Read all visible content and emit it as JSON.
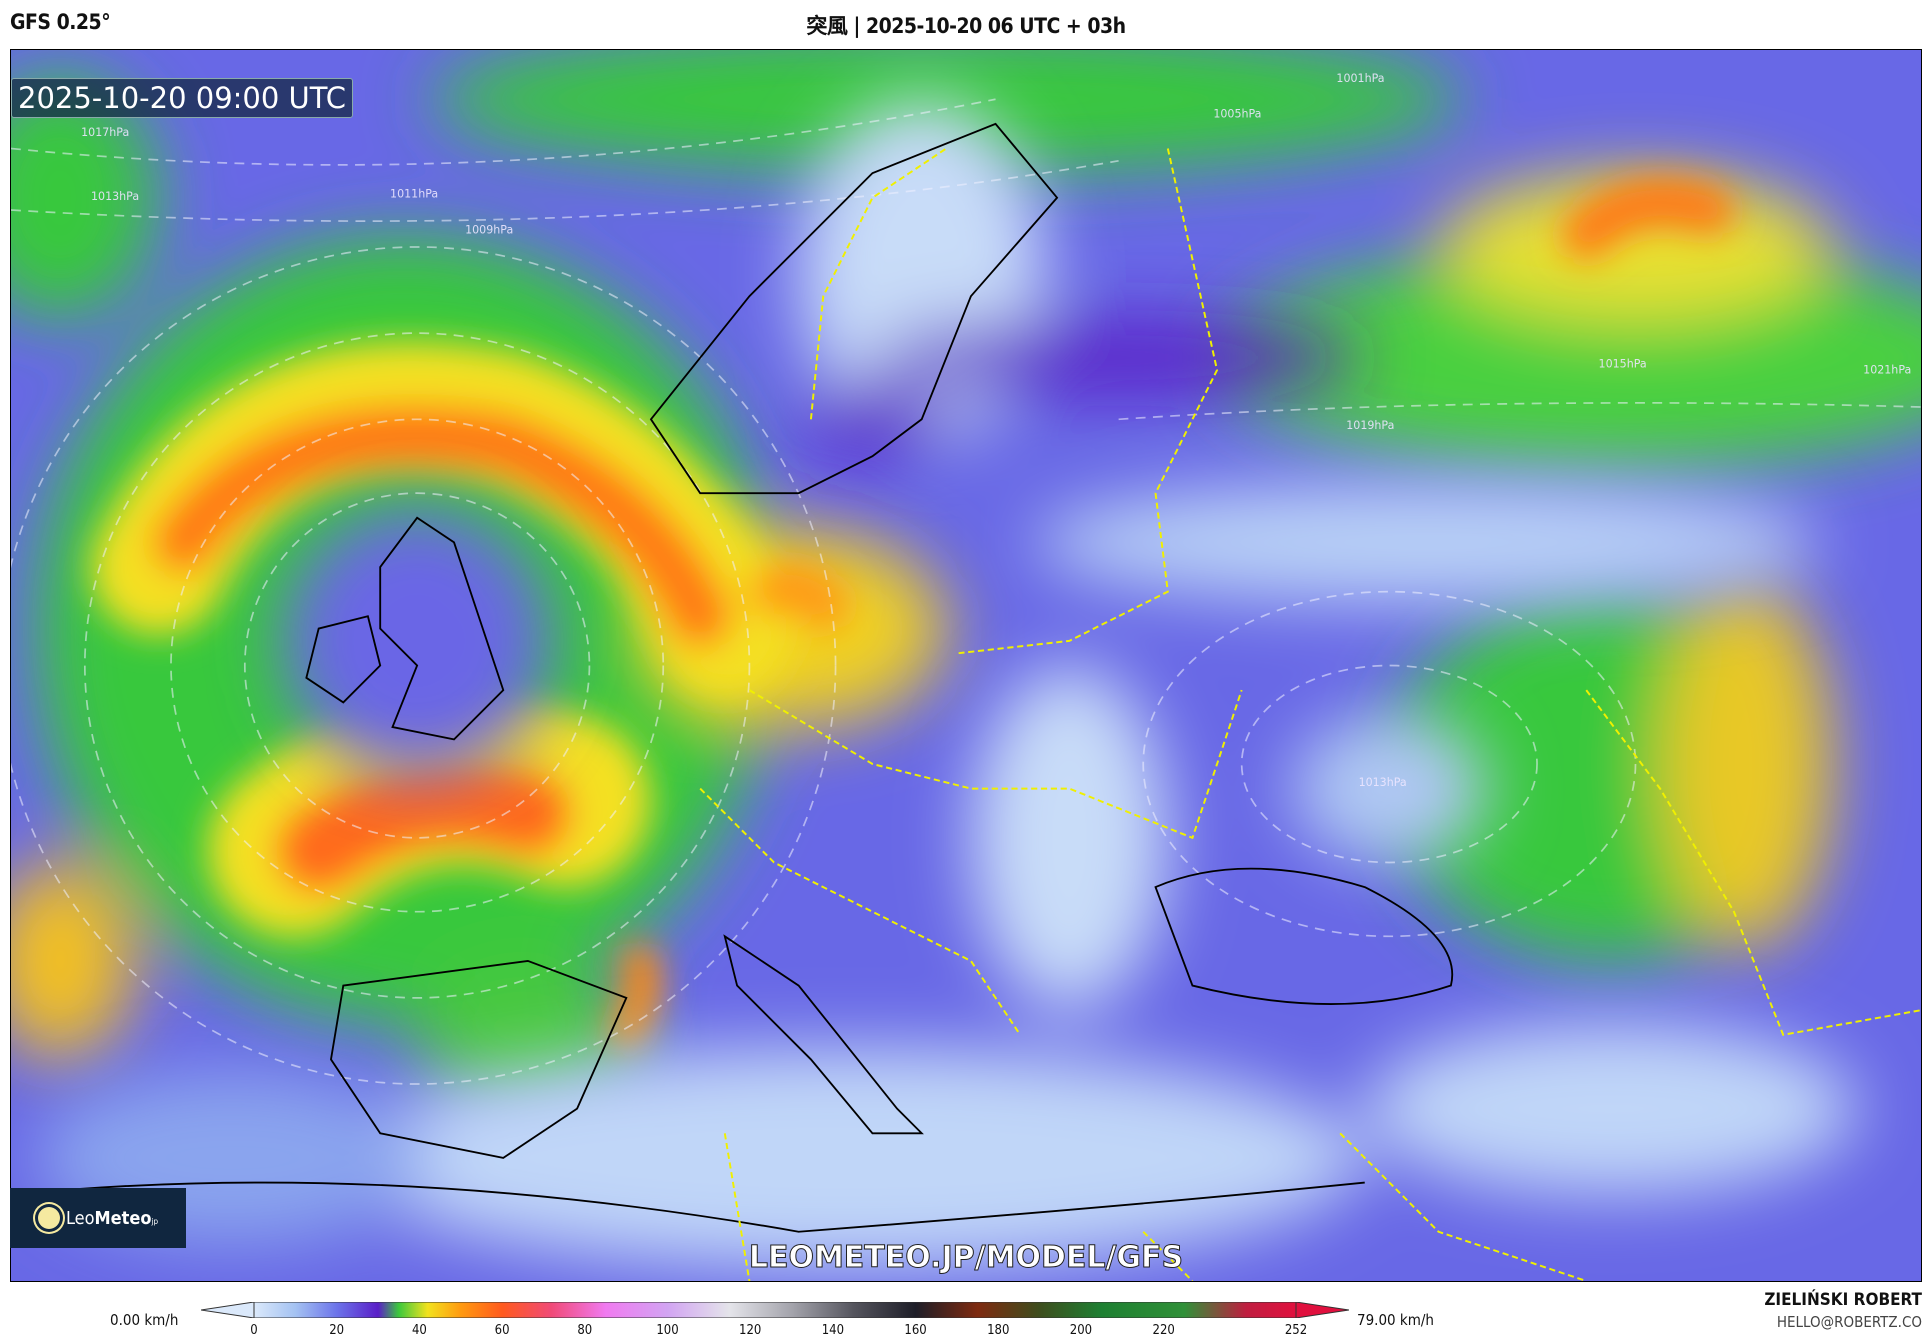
{
  "header": {
    "model": "GFS 0.25°",
    "title": "突風 | 2025-10-20 06 UTC + 03h"
  },
  "map": {
    "valid_time": "2025-10-20 09:00 UTC",
    "watermark": "LEOMETEO.JP/MODEL/GFS",
    "logo": {
      "text_light": "Leo",
      "text_bold": "Meteo",
      "suffix": "jp"
    },
    "isobar_labels": [
      "1017hPa",
      "1013hPa",
      "1011hPa",
      "1009hPa",
      "1005hPa",
      "1001hPa",
      "1015hPa",
      "1019hPa",
      "1021hPa",
      "1013hPa"
    ]
  },
  "colorbar": {
    "unit_min": "0.00 km/h",
    "unit_max": "79.00 km/h",
    "ticks": [
      "0",
      "20",
      "40",
      "60",
      "80",
      "100",
      "120",
      "140",
      "160",
      "180",
      "200",
      "220",
      "252"
    ],
    "range": [
      0,
      252
    ],
    "stops": [
      [
        0,
        "#dbe9fb"
      ],
      [
        10,
        "#a4c2f2"
      ],
      [
        20,
        "#6c74ea"
      ],
      [
        30,
        "#5a1fc8"
      ],
      [
        35,
        "#3cc83c"
      ],
      [
        42,
        "#f2e21e"
      ],
      [
        50,
        "#ff9a10"
      ],
      [
        60,
        "#ff5a1e"
      ],
      [
        72,
        "#f04a78"
      ],
      [
        85,
        "#f07af0"
      ],
      [
        100,
        "#d2a4f2"
      ],
      [
        115,
        "#e4e4ea"
      ],
      [
        130,
        "#a4a4ac"
      ],
      [
        145,
        "#55555e"
      ],
      [
        160,
        "#1e1e28"
      ],
      [
        175,
        "#7e2a10"
      ],
      [
        190,
        "#3e4e1e"
      ],
      [
        205,
        "#1e8032"
      ],
      [
        225,
        "#309038"
      ],
      [
        240,
        "#c01e40"
      ],
      [
        252,
        "#e0103e"
      ]
    ]
  },
  "footer": {
    "author": "ZIELIŃSKI ROBERT",
    "email": "HELLO@ROBERTZ.CO"
  }
}
